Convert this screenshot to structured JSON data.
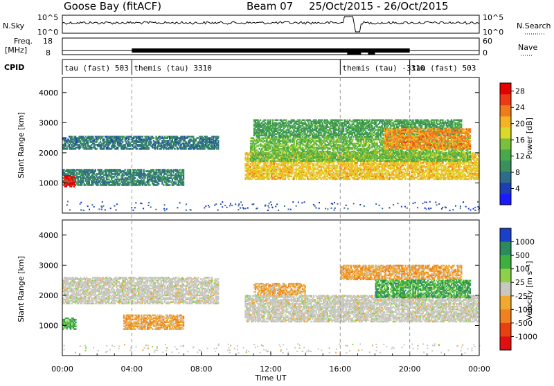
{
  "header": {
    "station": "Goose Bay (fitACF)",
    "beam": "Beam 07",
    "date_range": "25/Oct/2015 - 26/Oct/2015"
  },
  "strips": {
    "nsky_label": "N.Sky",
    "nsky_ticks": [
      "10^5",
      "10^0"
    ],
    "nsearch_label": "N.Search",
    "nsearch_ticks": [
      "10^5",
      "10^0"
    ],
    "freq_label_1": "Freq.",
    "freq_label_2": "[MHz]",
    "freq_ticks": [
      "18",
      "8"
    ],
    "nave_label": "Nave",
    "nave_ticks": [
      "60",
      "0"
    ],
    "cpid_label": "CPID",
    "cpid_segments": [
      {
        "label": "tau (fast) 503",
        "start_h": 0,
        "end_h": 4
      },
      {
        "label": "themis (tau) 3310",
        "start_h": 4,
        "end_h": 16
      },
      {
        "label": "themis (tau) -3310",
        "start_h": 16,
        "end_h": 20
      },
      {
        "label": "tau (fast) 503",
        "start_h": 20,
        "end_h": 24
      }
    ]
  },
  "chart_data": [
    {
      "type": "heatmap",
      "name": "power",
      "ylabel": "Slant Range [km]",
      "xlim_hours": [
        0,
        24
      ],
      "ylim_km": [
        0,
        4500
      ],
      "yticks": [
        1000,
        2000,
        3000,
        4000
      ],
      "colorbar": {
        "label": "Power [dB]",
        "ticks": [
          "4",
          "8",
          "12",
          "16",
          "20",
          "24",
          "28"
        ],
        "range": [
          0,
          30
        ],
        "colors": [
          "#1a1aff",
          "#1e3fb4",
          "#2e6c8a",
          "#3a8f5c",
          "#48a84a",
          "#79c13b",
          "#d9d92a",
          "#f5b324",
          "#f07a1c",
          "#ee3a14",
          "#e60000"
        ]
      },
      "echo_bands": [
        {
          "t0": 0,
          "t1": 9,
          "r0": 2100,
          "r1": 2550,
          "level": 7
        },
        {
          "t0": 0,
          "t1": 7,
          "r0": 900,
          "r1": 1450,
          "level": 8
        },
        {
          "t0": 0.1,
          "t1": 0.7,
          "r0": 850,
          "r1": 1250,
          "level": 29
        },
        {
          "t0": 10.5,
          "t1": 24,
          "r0": 1100,
          "r1": 2000,
          "level": 20
        },
        {
          "t0": 10.8,
          "t1": 23.5,
          "r0": 1700,
          "r1": 2500,
          "level": 14
        },
        {
          "t0": 11,
          "t1": 23,
          "r0": 2500,
          "r1": 3100,
          "level": 11
        },
        {
          "t0": 18.5,
          "t1": 23.5,
          "r0": 2100,
          "r1": 2800,
          "level": 23
        }
      ]
    },
    {
      "type": "heatmap",
      "name": "velocity",
      "ylabel": "Slant Range [km]",
      "xlabel": "Time UT",
      "xlim_hours": [
        0,
        24
      ],
      "ylim_km": [
        0,
        4500
      ],
      "yticks": [
        1000,
        2000,
        3000,
        4000
      ],
      "xticks": [
        "00:00",
        "04:00",
        "08:00",
        "12:00",
        "16:00",
        "20:00",
        "00:00"
      ],
      "colorbar": {
        "label": "Velocity [m s⁻¹]",
        "ticks": [
          "1000",
          "500",
          "100",
          "25",
          "-25",
          "-100",
          "-500",
          "-1000"
        ],
        "colors": [
          "#1a3fc8",
          "#2c8a5c",
          "#3fb040",
          "#8fd04a",
          "#c8c8c0",
          "#f0a830",
          "#f08020",
          "#e84010",
          "#e01010"
        ]
      },
      "echo_bands": [
        {
          "t0": 0,
          "t1": 9,
          "r0": 1700,
          "r1": 2600,
          "cat": "gray"
        },
        {
          "t0": 3.5,
          "t1": 7,
          "r0": 850,
          "r1": 1350,
          "cat": "neg"
        },
        {
          "t0": 0,
          "t1": 0.8,
          "r0": 850,
          "r1": 1250,
          "cat": "pos"
        },
        {
          "t0": 10.5,
          "t1": 24,
          "r0": 1100,
          "r1": 2000,
          "cat": "gray"
        },
        {
          "t0": 11,
          "t1": 14,
          "r0": 2000,
          "r1": 2400,
          "cat": "neg"
        },
        {
          "t0": 16,
          "t1": 23,
          "r0": 2500,
          "r1": 3000,
          "cat": "neg"
        },
        {
          "t0": 18,
          "t1": 23.5,
          "r0": 1900,
          "r1": 2500,
          "cat": "pos"
        }
      ]
    }
  ],
  "colors": {
    "axis": "#000000",
    "dashed": "#9a9a9a"
  }
}
